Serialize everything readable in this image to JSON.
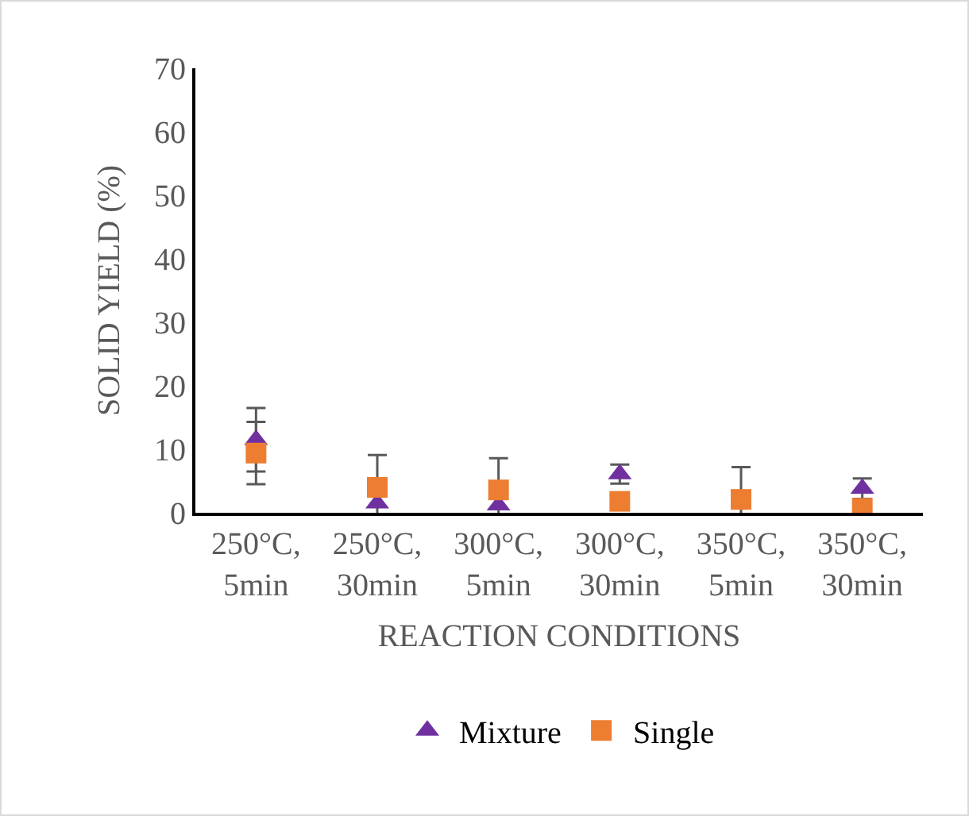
{
  "chart_data": {
    "type": "scatter",
    "xlabel": "REACTION CONDITIONS",
    "ylabel": "SOLID YIELD (%)",
    "categories": [
      "250°C, 5min",
      "250°C, 30min",
      "300°C, 5min",
      "300°C, 30min",
      "350°C, 5min",
      "350°C, 30min"
    ],
    "series": [
      {
        "name": "Mixture",
        "color": "#7030a0",
        "marker": "triangle",
        "values": [
          11.5,
          1.5,
          1.2,
          6.1,
          null,
          3.8
        ],
        "errors": [
          5,
          null,
          null,
          1.5,
          null,
          1.6
        ]
      },
      {
        "name": "Single",
        "color": "#ed7d31",
        "marker": "square",
        "values": [
          9.4,
          4,
          3.6,
          1.8,
          2.1,
          0.7
        ],
        "errors": [
          4.9,
          5.1,
          5,
          null,
          5.1,
          null
        ]
      }
    ],
    "ylim": [
      0,
      70
    ],
    "yticks": [
      0,
      10,
      20,
      30,
      40,
      50,
      60,
      70
    ],
    "grid": false,
    "legend": "bottom"
  }
}
